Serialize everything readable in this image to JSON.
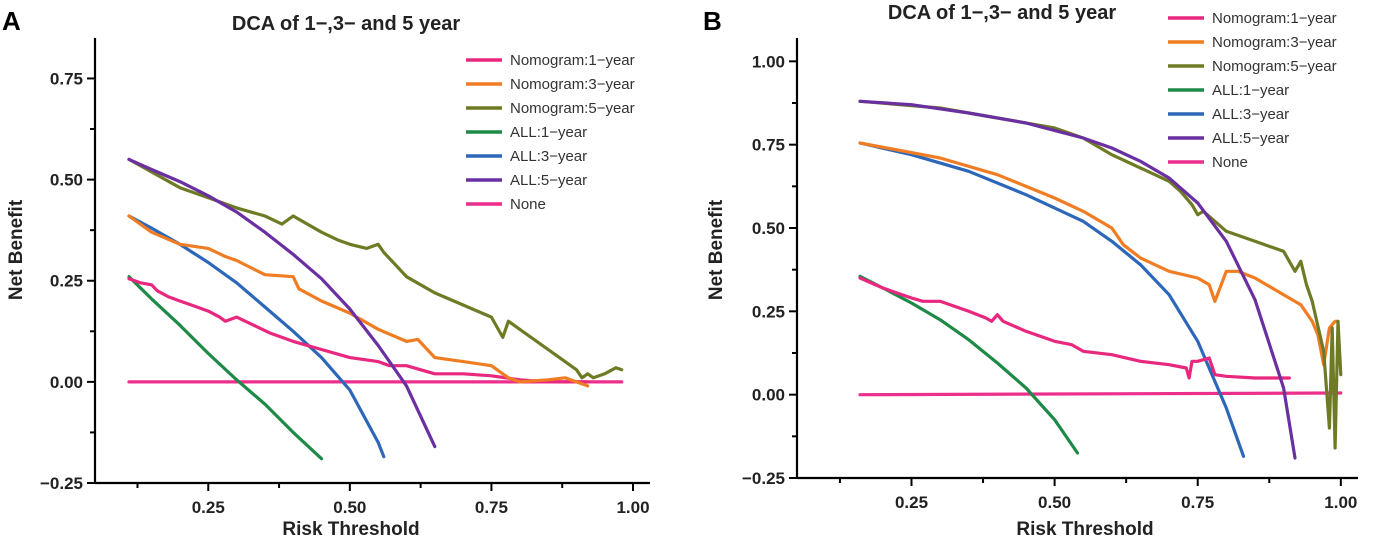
{
  "colors": {
    "nomo1": "#e8287f",
    "nomo3": "#f07d23",
    "nomo5": "#6f7a25",
    "all1": "#1f8a47",
    "all3": "#2c67b9",
    "all5": "#6a2fa0",
    "none": "#ec2f8c"
  },
  "chart_data": [
    {
      "panel": "A",
      "type": "line",
      "title": "DCA of 1−,3− and 5 year",
      "xlabel": "Risk Threshold",
      "ylabel": "Net Benefit",
      "xlim": [
        0.05,
        1.03
      ],
      "ylim": [
        -0.25,
        0.85
      ],
      "xticks": [
        0.25,
        0.5,
        0.75,
        1.0
      ],
      "xtick_labels": [
        "0.25",
        "0.50",
        "0.75",
        "1.00"
      ],
      "yticks": [
        -0.25,
        0.0,
        0.25,
        0.5,
        0.75
      ],
      "ytick_labels": [
        "−0.25",
        "0.00",
        "0.25",
        "0.50",
        "0.75"
      ],
      "legend_position": "top-right",
      "series": [
        {
          "name": "Nomogram:1−year",
          "color_key": "nomo1",
          "x": [
            0.11,
            0.13,
            0.15,
            0.16,
            0.18,
            0.2,
            0.22,
            0.25,
            0.27,
            0.28,
            0.3,
            0.33,
            0.36,
            0.4,
            0.45,
            0.5,
            0.55,
            0.57,
            0.6,
            0.65,
            0.7,
            0.75,
            0.8,
            0.85,
            0.9,
            0.92
          ],
          "y": [
            0.255,
            0.245,
            0.24,
            0.225,
            0.21,
            0.2,
            0.19,
            0.175,
            0.16,
            0.15,
            0.16,
            0.14,
            0.12,
            0.1,
            0.08,
            0.06,
            0.05,
            0.04,
            0.04,
            0.02,
            0.02,
            0.015,
            0.005,
            0.0,
            0.0,
            0.0
          ]
        },
        {
          "name": "Nomogram:3−year",
          "color_key": "nomo3",
          "x": [
            0.11,
            0.15,
            0.2,
            0.25,
            0.28,
            0.3,
            0.35,
            0.4,
            0.41,
            0.45,
            0.5,
            0.55,
            0.6,
            0.62,
            0.65,
            0.7,
            0.75,
            0.78,
            0.8,
            0.85,
            0.88,
            0.9,
            0.92
          ],
          "y": [
            0.41,
            0.37,
            0.34,
            0.33,
            0.31,
            0.3,
            0.265,
            0.26,
            0.23,
            0.2,
            0.17,
            0.13,
            0.1,
            0.105,
            0.06,
            0.05,
            0.04,
            0.01,
            0.0,
            0.005,
            0.01,
            0.0,
            -0.01
          ]
        },
        {
          "name": "Nomogram:5−year",
          "color_key": "nomo5",
          "x": [
            0.11,
            0.2,
            0.25,
            0.3,
            0.35,
            0.38,
            0.4,
            0.45,
            0.48,
            0.5,
            0.53,
            0.55,
            0.56,
            0.58,
            0.6,
            0.65,
            0.7,
            0.75,
            0.77,
            0.78,
            0.8,
            0.85,
            0.87,
            0.9,
            0.91,
            0.92,
            0.93,
            0.95,
            0.97,
            0.98
          ],
          "y": [
            0.55,
            0.48,
            0.455,
            0.43,
            0.41,
            0.39,
            0.41,
            0.37,
            0.35,
            0.34,
            0.33,
            0.34,
            0.32,
            0.29,
            0.26,
            0.22,
            0.19,
            0.16,
            0.11,
            0.15,
            0.13,
            0.08,
            0.06,
            0.03,
            0.01,
            0.02,
            0.01,
            0.02,
            0.035,
            0.03
          ]
        },
        {
          "name": "ALL:1−year",
          "color_key": "all1",
          "x": [
            0.11,
            0.15,
            0.2,
            0.25,
            0.3,
            0.35,
            0.4,
            0.45
          ],
          "y": [
            0.26,
            0.205,
            0.14,
            0.07,
            0.005,
            -0.055,
            -0.125,
            -0.19
          ]
        },
        {
          "name": "ALL:3−year",
          "color_key": "all3",
          "x": [
            0.11,
            0.15,
            0.2,
            0.25,
            0.3,
            0.35,
            0.4,
            0.45,
            0.5,
            0.55,
            0.56
          ],
          "y": [
            0.41,
            0.38,
            0.34,
            0.295,
            0.245,
            0.185,
            0.125,
            0.06,
            -0.02,
            -0.15,
            -0.185
          ]
        },
        {
          "name": "ALL:5−year",
          "color_key": "all5",
          "x": [
            0.11,
            0.15,
            0.2,
            0.25,
            0.3,
            0.35,
            0.4,
            0.45,
            0.5,
            0.55,
            0.6,
            0.65
          ],
          "y": [
            0.55,
            0.525,
            0.495,
            0.46,
            0.42,
            0.37,
            0.315,
            0.255,
            0.18,
            0.09,
            -0.01,
            -0.16
          ]
        },
        {
          "name": "None",
          "color_key": "none",
          "x": [
            0.11,
            0.98
          ],
          "y": [
            0.0,
            0.0
          ]
        }
      ]
    },
    {
      "panel": "B",
      "type": "line",
      "title": "DCA of 1−,3− and 5 year",
      "xlabel": "Risk Threshold",
      "ylabel": "Net Benefit",
      "xlim": [
        0.05,
        1.03
      ],
      "ylim": [
        -0.25,
        1.07
      ],
      "xticks": [
        0.25,
        0.5,
        0.75,
        1.0
      ],
      "xtick_labels": [
        "0.25",
        "0.50",
        "0.75",
        "1.00"
      ],
      "yticks": [
        -0.25,
        0.0,
        0.25,
        0.5,
        0.75,
        1.0
      ],
      "ytick_labels": [
        "−0.25",
        "0.00",
        "0.25",
        "0.50",
        "0.75",
        "1.00"
      ],
      "legend_position": "top-right",
      "series": [
        {
          "name": "Nomogram:1−year",
          "color_key": "nomo1",
          "x": [
            0.16,
            0.2,
            0.25,
            0.27,
            0.3,
            0.35,
            0.38,
            0.39,
            0.4,
            0.41,
            0.45,
            0.5,
            0.53,
            0.55,
            0.6,
            0.65,
            0.7,
            0.73,
            0.735,
            0.74,
            0.75,
            0.77,
            0.78,
            0.8,
            0.85,
            0.9,
            0.91
          ],
          "y": [
            0.35,
            0.32,
            0.29,
            0.28,
            0.28,
            0.25,
            0.23,
            0.22,
            0.24,
            0.22,
            0.19,
            0.16,
            0.15,
            0.13,
            0.12,
            0.1,
            0.09,
            0.08,
            0.05,
            0.1,
            0.1,
            0.11,
            0.06,
            0.055,
            0.05,
            0.05,
            0.05
          ]
        },
        {
          "name": "Nomogram:3−year",
          "color_key": "nomo3",
          "x": [
            0.16,
            0.3,
            0.4,
            0.5,
            0.55,
            0.6,
            0.62,
            0.65,
            0.7,
            0.75,
            0.77,
            0.78,
            0.8,
            0.82,
            0.85,
            0.9,
            0.93,
            0.95,
            0.96,
            0.97,
            0.98,
            0.99,
            0.995
          ],
          "y": [
            0.755,
            0.71,
            0.66,
            0.59,
            0.55,
            0.5,
            0.45,
            0.41,
            0.37,
            0.35,
            0.33,
            0.28,
            0.37,
            0.37,
            0.35,
            0.3,
            0.27,
            0.22,
            0.18,
            0.09,
            0.2,
            0.22,
            0.22
          ]
        },
        {
          "name": "Nomogram:5−year",
          "color_key": "nomo5",
          "x": [
            0.16,
            0.3,
            0.4,
            0.5,
            0.55,
            0.6,
            0.65,
            0.7,
            0.72,
            0.74,
            0.75,
            0.76,
            0.78,
            0.8,
            0.85,
            0.9,
            0.92,
            0.93,
            0.94,
            0.95,
            0.97,
            0.98,
            0.985,
            0.99,
            0.995,
            1.0
          ],
          "y": [
            0.88,
            0.86,
            0.83,
            0.8,
            0.77,
            0.72,
            0.68,
            0.64,
            0.61,
            0.57,
            0.54,
            0.55,
            0.52,
            0.49,
            0.46,
            0.43,
            0.37,
            0.4,
            0.33,
            0.28,
            0.13,
            -0.1,
            0.2,
            -0.16,
            0.22,
            0.06
          ]
        },
        {
          "name": "ALL:1−year",
          "color_key": "all1",
          "x": [
            0.16,
            0.2,
            0.25,
            0.3,
            0.35,
            0.4,
            0.45,
            0.5,
            0.54
          ],
          "y": [
            0.355,
            0.32,
            0.275,
            0.225,
            0.165,
            0.095,
            0.02,
            -0.075,
            -0.175
          ]
        },
        {
          "name": "ALL:3−year",
          "color_key": "all3",
          "x": [
            0.16,
            0.25,
            0.35,
            0.45,
            0.55,
            0.6,
            0.65,
            0.7,
            0.75,
            0.8,
            0.83
          ],
          "y": [
            0.755,
            0.72,
            0.67,
            0.6,
            0.52,
            0.46,
            0.39,
            0.3,
            0.16,
            -0.04,
            -0.185
          ]
        },
        {
          "name": "ALL:5−year",
          "color_key": "all5",
          "x": [
            0.16,
            0.25,
            0.35,
            0.45,
            0.55,
            0.6,
            0.65,
            0.7,
            0.75,
            0.8,
            0.85,
            0.9,
            0.92
          ],
          "y": [
            0.88,
            0.87,
            0.845,
            0.815,
            0.77,
            0.74,
            0.7,
            0.65,
            0.575,
            0.46,
            0.285,
            0.02,
            -0.19
          ]
        },
        {
          "name": "None",
          "color_key": "none",
          "x": [
            0.16,
            1.0
          ],
          "y": [
            0.0,
            0.005
          ]
        }
      ]
    }
  ]
}
